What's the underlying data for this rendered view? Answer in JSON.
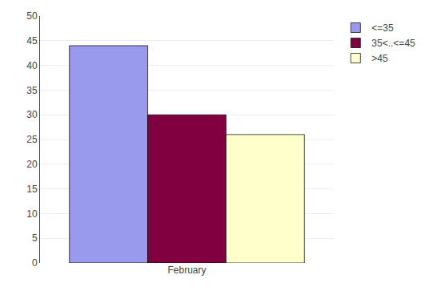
{
  "chart_data": {
    "type": "bar",
    "categories": [
      "February"
    ],
    "series": [
      {
        "name": "<=35",
        "color": "#9999ee",
        "values": [
          44
        ]
      },
      {
        "name": "35<..<=45",
        "color": "#800040",
        "values": [
          30
        ]
      },
      {
        "name": ">45",
        "color": "#ffffcc",
        "values": [
          26
        ]
      }
    ],
    "ylim": [
      0,
      50
    ],
    "yticks": [
      0,
      5,
      10,
      15,
      20,
      25,
      30,
      35,
      40,
      45,
      50
    ],
    "grid": true,
    "legend": "right"
  }
}
